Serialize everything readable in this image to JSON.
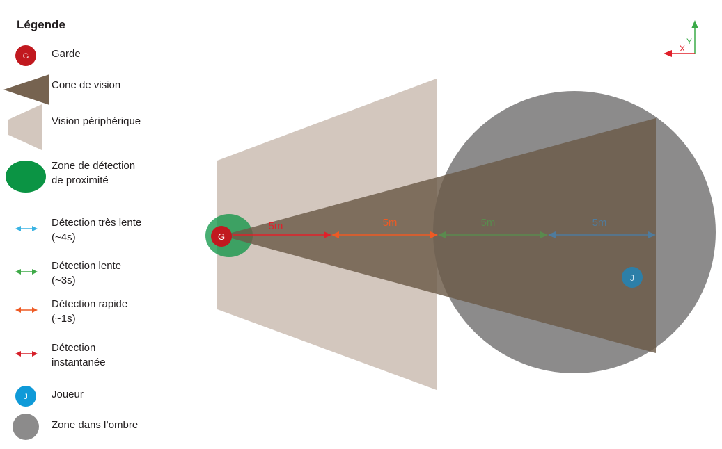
{
  "legend": {
    "title": "Légende",
    "items": [
      {
        "key": "garde",
        "label_lines": [
          "Garde"
        ],
        "symbol_text": "G",
        "color": "#c1191f"
      },
      {
        "key": "cone",
        "label_lines": [
          "Cone de vision"
        ],
        "color": "#766350"
      },
      {
        "key": "peripheral",
        "label_lines": [
          "Vision périphérique"
        ],
        "color": "#d3c7be"
      },
      {
        "key": "proximity",
        "label_lines": [
          "Zone de détection",
          "de proximité"
        ],
        "color": "#0b9444"
      },
      {
        "key": "very-slow",
        "label_lines": [
          "Détection très lente",
          "(~4s)"
        ],
        "color": "#3ab3e3"
      },
      {
        "key": "slow",
        "label_lines": [
          "Détection lente",
          "(~3s)"
        ],
        "color": "#3faa48"
      },
      {
        "key": "fast",
        "label_lines": [
          "Détection rapide",
          "(~1s)"
        ],
        "color": "#ee5a24"
      },
      {
        "key": "instant",
        "label_lines": [
          "Détection",
          "instantanée"
        ],
        "color": "#d6202a"
      },
      {
        "key": "joueur",
        "label_lines": [
          "Joueur"
        ],
        "symbol_text": "J",
        "color": "#0f9ad8"
      },
      {
        "key": "shadow",
        "label_lines": [
          "Zone dans l’ombre"
        ],
        "color": "#8c8b8b"
      }
    ]
  },
  "axes": {
    "x_label": "X",
    "y_label": "Y",
    "x_color": "#e0202a",
    "y_color": "#3aaa48"
  },
  "diagram": {
    "guard_label": "G",
    "player_label": "J",
    "distance_labels": [
      "5m",
      "5m",
      "5m",
      "5m"
    ],
    "segment_colors": [
      "#e0202a",
      "#ee5a24",
      "#5a8a4e",
      "#4f7b9c"
    ]
  }
}
